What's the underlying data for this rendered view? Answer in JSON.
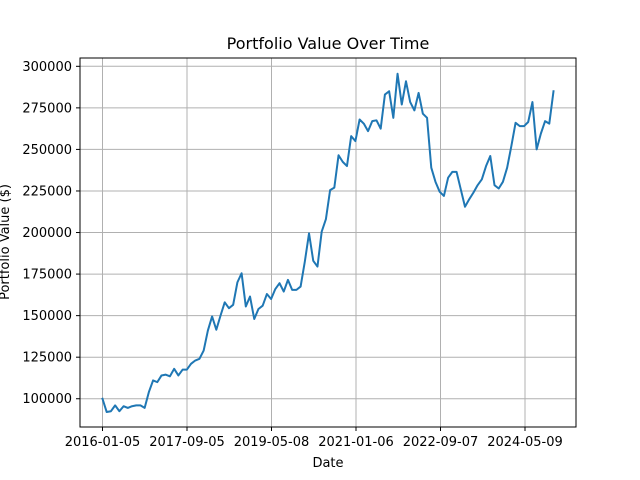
{
  "chart_data": {
    "type": "line",
    "title": "Portfolio Value Over Time",
    "xlabel": "Date",
    "ylabel": "Portfolio Value ($)",
    "ylim": [
      83000,
      305000
    ],
    "grid": true,
    "line_color": "#1f77b4",
    "x_tick_labels": [
      "2016-01-05",
      "2017-09-05",
      "2019-05-08",
      "2021-01-06",
      "2022-09-07",
      "2024-05-09"
    ],
    "y_ticks": [
      100000,
      125000,
      150000,
      175000,
      200000,
      225000,
      250000,
      275000,
      300000
    ],
    "y_tick_labels": [
      "100000",
      "125000",
      "150000",
      "175000",
      "200000",
      "225000",
      "250000",
      "275000",
      "300000"
    ],
    "series": [
      {
        "name": "Portfolio Value",
        "values": [
          100000,
          92000,
          92500,
          96000,
          92500,
          95500,
          94500,
          95500,
          96000,
          96000,
          94500,
          104000,
          111000,
          110000,
          114000,
          114500,
          113500,
          118000,
          114000,
          117500,
          117500,
          121000,
          123000,
          124000,
          129000,
          141000,
          149500,
          141500,
          150000,
          158000,
          154500,
          156500,
          170000,
          175500,
          155500,
          161500,
          148000,
          154000,
          156000,
          163000,
          160000,
          166000,
          169500,
          164500,
          171500,
          165500,
          165500,
          167500,
          182500,
          199500,
          183000,
          179500,
          200500,
          208000,
          225500,
          227000,
          246500,
          242500,
          240000,
          258000,
          255000,
          268000,
          265500,
          261000,
          267000,
          267500,
          262500,
          283000,
          285000,
          269000,
          295500,
          277000,
          291000,
          278500,
          273500,
          284000,
          271500,
          269000,
          239000,
          230500,
          224500,
          222000,
          233000,
          236500,
          236500,
          226000,
          215500,
          220000,
          224000,
          228500,
          232000,
          240000,
          246000,
          228500,
          226500,
          230500,
          239000,
          252000,
          266000,
          264000,
          264000,
          266500,
          278500,
          250000,
          259500,
          267000,
          265500,
          285000
        ]
      }
    ]
  }
}
